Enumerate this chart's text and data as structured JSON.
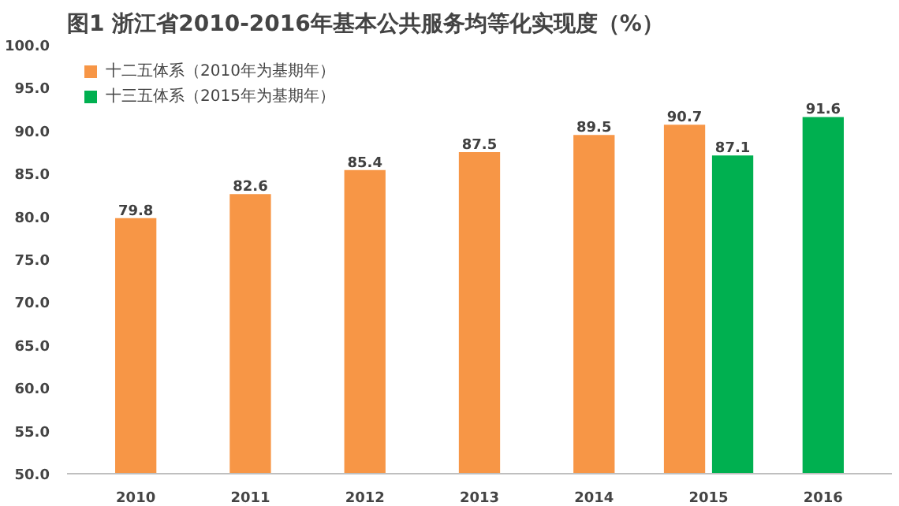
{
  "chart_data": {
    "type": "bar",
    "title": "图1  浙江省2010-2016年基本公共服务均等化实现度（%）",
    "categories": [
      "2010",
      "2011",
      "2012",
      "2013",
      "2014",
      "2015",
      "2016"
    ],
    "series": [
      {
        "name": "十二五体系（2010年为基期年）",
        "color": "#f79646",
        "values": [
          79.8,
          82.6,
          85.4,
          87.5,
          89.5,
          90.7,
          null
        ]
      },
      {
        "name": "十三五体系（2015年为基期年）",
        "color": "#00b050",
        "values": [
          null,
          null,
          null,
          null,
          null,
          87.1,
          91.6
        ]
      }
    ],
    "ylim": [
      50,
      100
    ],
    "yticks": [
      {
        "value": 50,
        "label": "50.0"
      },
      {
        "value": 55,
        "label": "55.0"
      },
      {
        "value": 60,
        "label": "60.0"
      },
      {
        "value": 65,
        "label": "65.0"
      },
      {
        "value": 70,
        "label": "70.0"
      },
      {
        "value": 75,
        "label": "75.0"
      },
      {
        "value": 80,
        "label": "80.0"
      },
      {
        "value": 85,
        "label": "85.0"
      },
      {
        "value": 90,
        "label": "90.0"
      },
      {
        "value": 95,
        "label": "95.0"
      },
      {
        "value": 100,
        "label": "100.0"
      }
    ],
    "grid": false,
    "legend": "top left",
    "data_labels": true
  }
}
